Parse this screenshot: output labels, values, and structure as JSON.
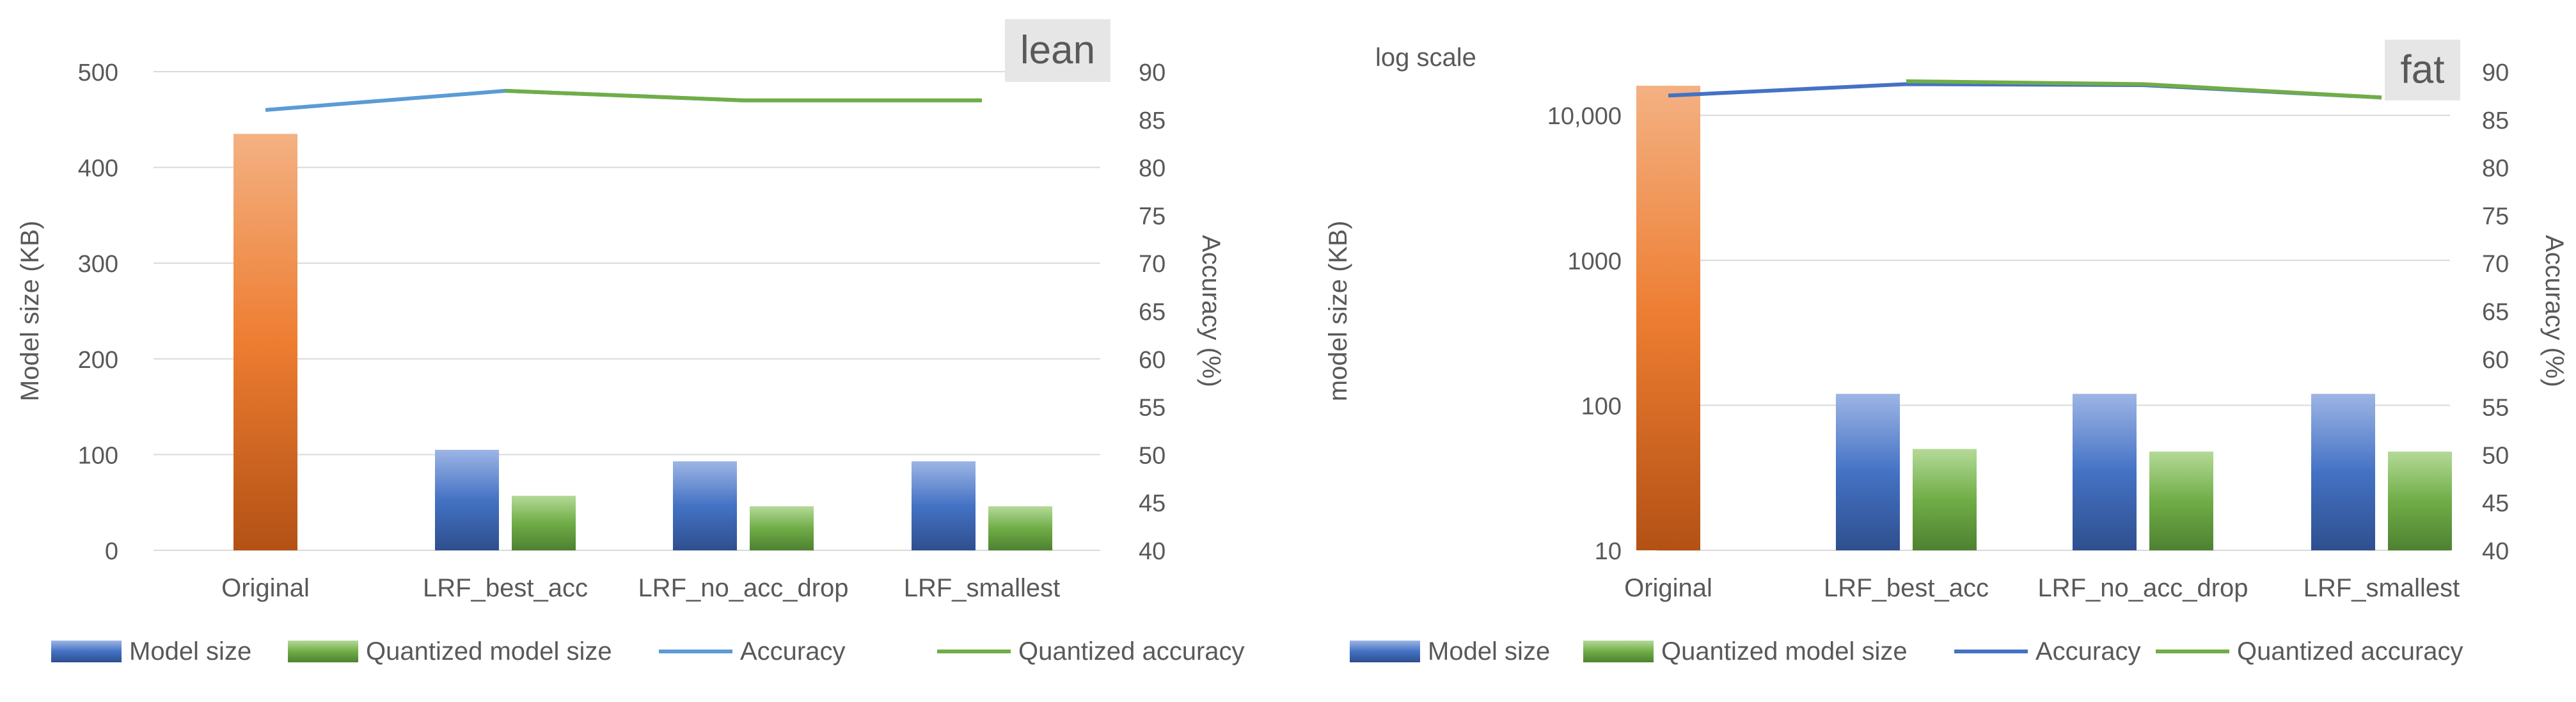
{
  "chart_data": [
    {
      "type": "bar",
      "title": "lean",
      "subtitle": "",
      "categories": [
        "Original",
        "LRF_best_acc",
        "LRF_no_acc_drop",
        "LRF_smallest"
      ],
      "ylabel": "Model size (KB)",
      "y2label": "Accuracy (%)",
      "ylim": [
        0,
        500
      ],
      "yticks": [
        0,
        100,
        200,
        300,
        400,
        500
      ],
      "yticklabels": [
        "0",
        "100",
        "200",
        "300",
        "400",
        "500"
      ],
      "y2lim": [
        40,
        90
      ],
      "y2ticks": [
        40,
        45,
        50,
        55,
        60,
        65,
        70,
        75,
        80,
        85,
        90
      ],
      "bars": {
        "original": [
          435
        ],
        "model_size": [
          null,
          105,
          93,
          93
        ],
        "quantized_model_size": [
          null,
          57,
          46,
          46
        ]
      },
      "lines": {
        "accuracy": [
          86,
          88,
          87,
          87
        ],
        "quantized_accuracy": [
          null,
          88,
          87,
          87
        ]
      },
      "legend": [
        "Model size",
        "Quantized model size",
        "Accuracy",
        "Quantized accuracy"
      ],
      "legend_position": "bottom",
      "colors": {
        "original": "#ED7D31",
        "model_size": "#4472C4",
        "quantized_model_size": "#70AD47",
        "accuracy": "#5B9BD5",
        "quantized_accuracy": "#70AD47"
      }
    },
    {
      "type": "bar",
      "title": "fat",
      "subtitle": "log scale",
      "categories": [
        "Original",
        "LRF_best_acc",
        "LRF_no_acc_drop",
        "LRF_smallest"
      ],
      "ylabel": "model size (KB)",
      "y2label": "Accuracy (%)",
      "yscale": "log",
      "ylim": [
        10,
        20000
      ],
      "yticks": [
        10,
        100,
        1000,
        10000
      ],
      "yticklabels": [
        "10",
        "100",
        "1000",
        "10,000"
      ],
      "y2lim": [
        40,
        90
      ],
      "y2ticks": [
        40,
        45,
        50,
        55,
        60,
        65,
        70,
        75,
        80,
        85,
        90
      ],
      "bars": {
        "original": [
          16000
        ],
        "model_size": [
          null,
          120,
          120,
          120
        ],
        "quantized_model_size": [
          null,
          50,
          48,
          48
        ]
      },
      "lines": {
        "accuracy": [
          87.5,
          88.7,
          88.6,
          87.3
        ],
        "quantized_accuracy": [
          null,
          89,
          88.7,
          87.3
        ]
      },
      "legend": [
        "Model size",
        "Quantized model size",
        "Accuracy",
        "Quantized accuracy"
      ],
      "legend_position": "bottom",
      "colors": {
        "original": "#ED7D31",
        "model_size": "#4472C4",
        "quantized_model_size": "#70AD47",
        "accuracy": "#4472C4",
        "quantized_accuracy": "#70AD47"
      }
    }
  ]
}
